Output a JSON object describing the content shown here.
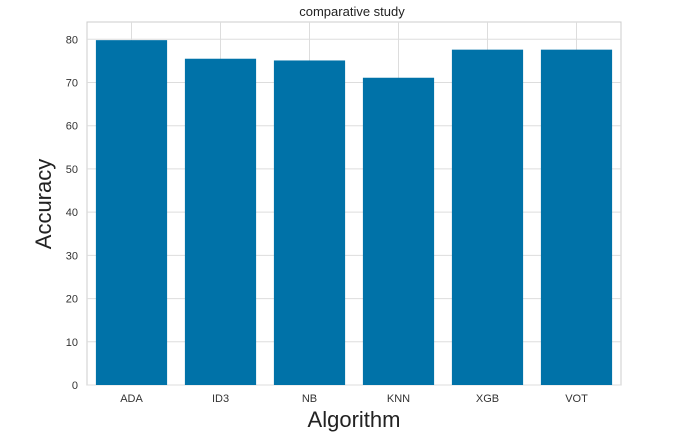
{
  "chart_data": {
    "type": "bar",
    "title": "comparative study",
    "xlabel": "Algorithm",
    "ylabel": "Accuracy",
    "categories": [
      "ADA",
      "ID3",
      "NB",
      "KNN",
      "XGB",
      "VOT"
    ],
    "values": [
      79.8,
      75.5,
      75.1,
      71.1,
      77.6,
      77.6
    ],
    "ylim": [
      0,
      84
    ],
    "yticks": [
      "0",
      "10",
      "20",
      "30",
      "40",
      "50",
      "60",
      "70",
      "80"
    ],
    "grid": true,
    "bar_color": "#0072a8",
    "grid_color": "#dddddd",
    "frame_color": "#cccccc"
  }
}
